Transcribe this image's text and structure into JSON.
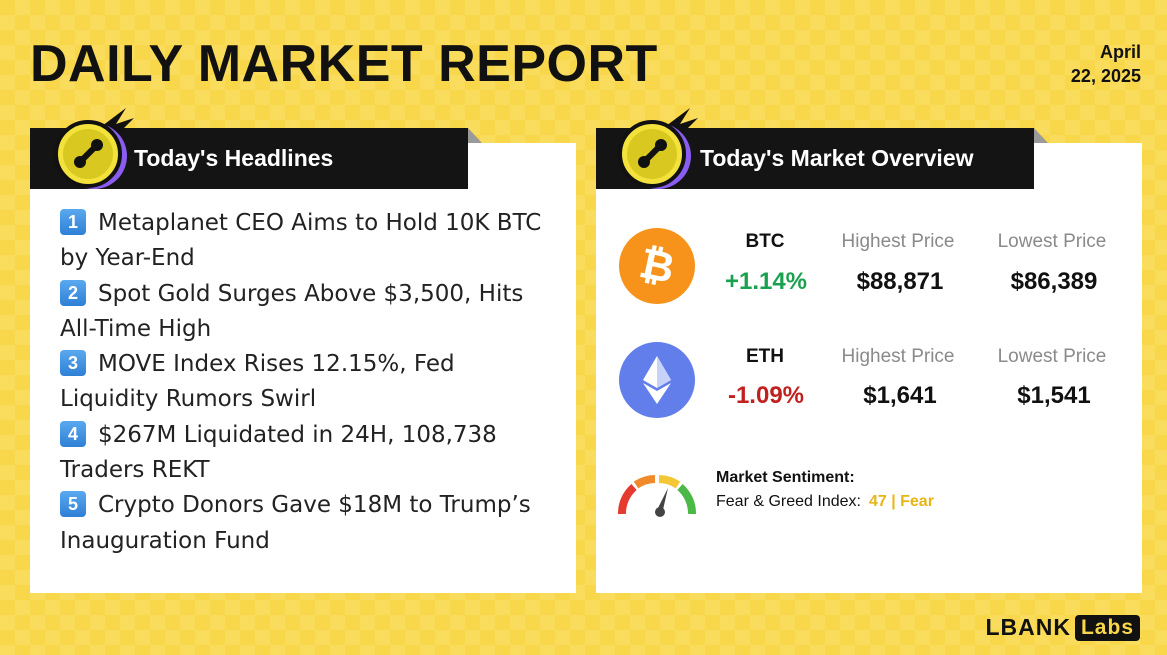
{
  "header": {
    "title": "DAILY MARKET REPORT",
    "date_line1": "April",
    "date_line2": "22, 2025"
  },
  "headlines": {
    "title": "Today's Headlines",
    "items": [
      {
        "num": "1",
        "text": "Metaplanet CEO Aims to Hold 10K BTC by Year-End"
      },
      {
        "num": "2",
        "text": "Spot Gold Surges Above $3,500, Hits All-Time High"
      },
      {
        "num": "3",
        "text": "MOVE Index Rises 12.15%, Fed Liquidity Rumors Swirl"
      },
      {
        "num": "4",
        "text": "$267M Liquidated in 24H, 108,738 Traders REKT"
      },
      {
        "num": "5",
        "text": "Crypto Donors Gave $18M to Trump’s Inauguration Fund"
      }
    ]
  },
  "market": {
    "title": "Today's Market Overview",
    "high_label": "Highest Price",
    "low_label": "Lowest Price",
    "coins": [
      {
        "symbol": "BTC",
        "change": "+1.14%",
        "high": "$88,871",
        "low": "$86,389",
        "color": "#f7931a",
        "icon": "bitcoin-icon"
      },
      {
        "symbol": "ETH",
        "change": "-1.09%",
        "high": "$1,641",
        "low": "$1,541",
        "color": "#627eea",
        "icon": "ethereum-icon"
      }
    ],
    "sentiment": {
      "title": "Market Sentiment:",
      "label": "Fear & Greed Index:",
      "value": "47 | Fear"
    }
  },
  "brand": {
    "name": "LBANK",
    "suffix": "Labs"
  },
  "colors": {
    "background": "#f8d84a",
    "positive": "#1aa150",
    "negative": "#c0201e",
    "accent": "#e8b516"
  }
}
